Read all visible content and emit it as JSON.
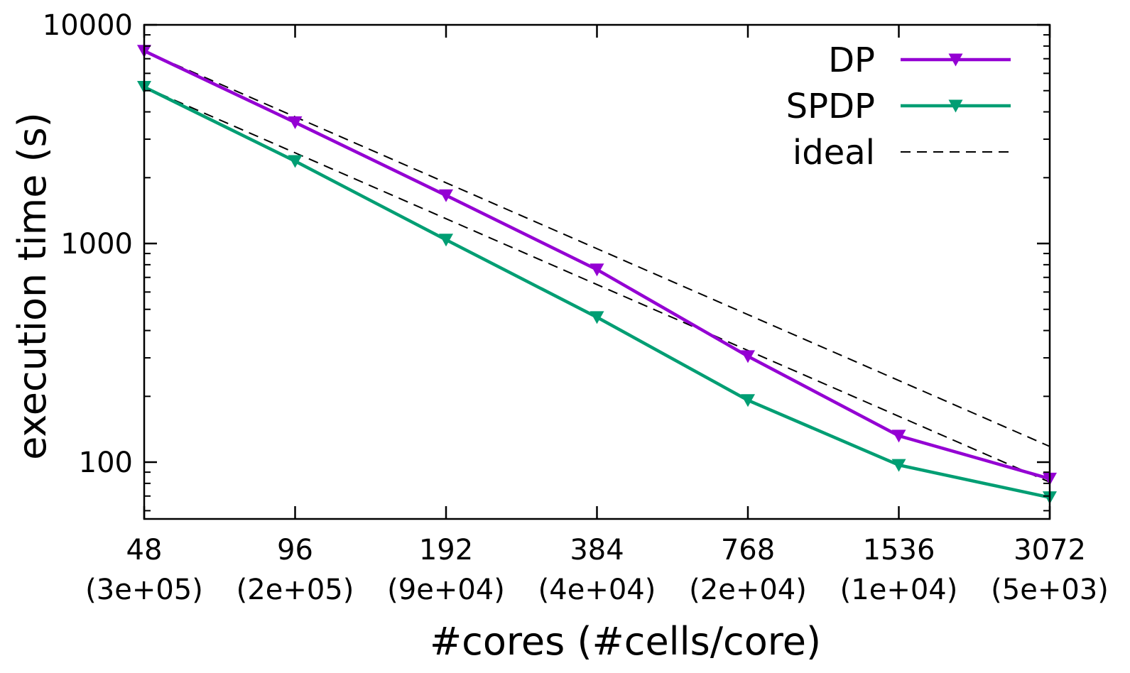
{
  "chart_data": {
    "type": "line",
    "xscale": "log2",
    "yscale": "log10",
    "xlabel": "#cores (#cells/core)",
    "ylabel": "execution time (s)",
    "ylim": [
      55,
      10000
    ],
    "yticks": [
      {
        "value": 100,
        "label": "100"
      },
      {
        "value": 1000,
        "label": "1000"
      },
      {
        "value": 10000,
        "label": "10000"
      }
    ],
    "x": [
      48,
      96,
      192,
      384,
      768,
      1536,
      3072
    ],
    "xtick_labels": [
      "48",
      "96",
      "192",
      "384",
      "768",
      "1536",
      "3072"
    ],
    "xtick_sublabels": [
      "(3e+05)",
      "(2e+05)",
      "(9e+04)",
      "(4e+04)",
      "(2e+04)",
      "(1e+04)",
      "(5e+03)"
    ],
    "series": [
      {
        "name": "DP",
        "color": "#9400d3",
        "marker": "triangle-down",
        "values": [
          7600,
          3580,
          1660,
          760,
          305,
          132,
          84
        ]
      },
      {
        "name": "SPDP",
        "color": "#009e73",
        "marker": "triangle-down",
        "values": [
          5200,
          2380,
          1040,
          460,
          192,
          97,
          69
        ]
      },
      {
        "name": "ideal",
        "color": "#000000",
        "dashed": true,
        "lines": [
          {
            "start_x": 48,
            "start_y": 7600,
            "end_x": 3072,
            "end_y": 118
          },
          {
            "start_x": 48,
            "start_y": 5200,
            "end_x": 3072,
            "end_y": 81
          }
        ]
      }
    ],
    "legend_position": "top-right",
    "grid": false
  }
}
